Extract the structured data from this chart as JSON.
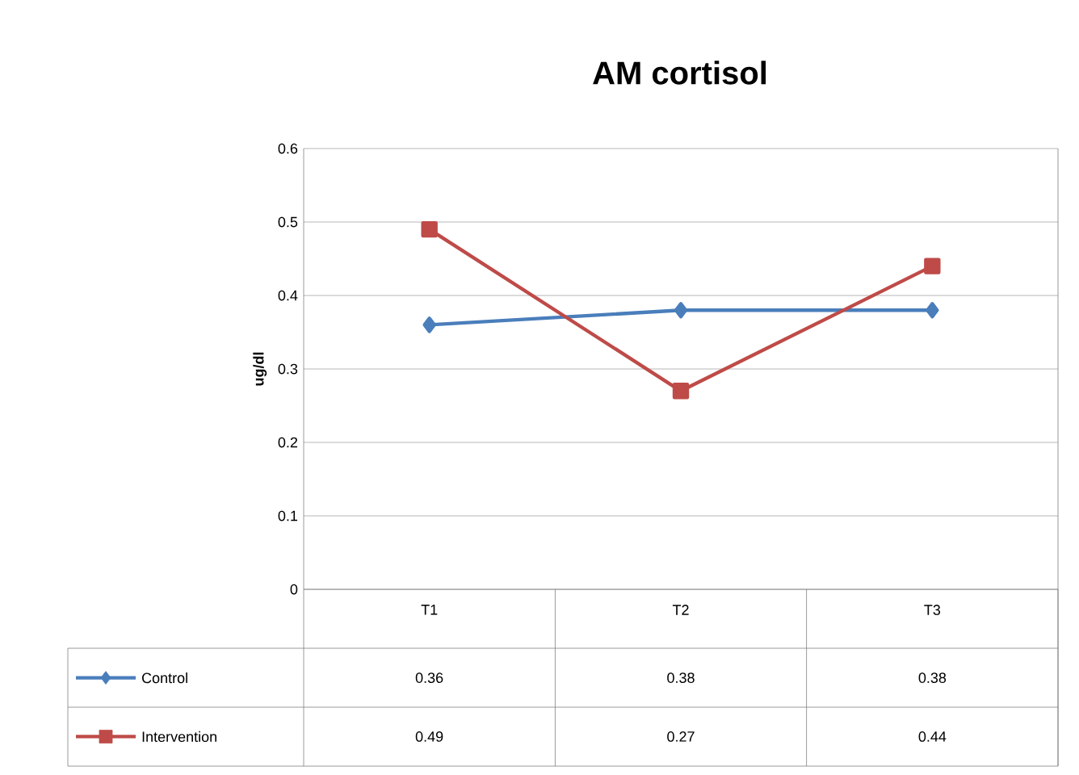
{
  "chart_data": {
    "type": "line",
    "title": "AM cortisol",
    "ylabel": "ug/dl",
    "categories": [
      "T1",
      "T2",
      "T3"
    ],
    "series": [
      {
        "name": "Control",
        "color": "#4a7ebb",
        "marker": "diamond",
        "values": [
          0.36,
          0.38,
          0.38
        ]
      },
      {
        "name": "Intervention",
        "color": "#be4b48",
        "marker": "square",
        "values": [
          0.49,
          0.27,
          0.44
        ]
      }
    ],
    "ylim": [
      0,
      0.6
    ],
    "yticks": [
      0,
      0.1,
      0.2,
      0.3,
      0.4,
      0.5,
      0.6
    ],
    "grid": "y",
    "legend": "bottom",
    "data_labels": true,
    "line_style": "solid"
  }
}
